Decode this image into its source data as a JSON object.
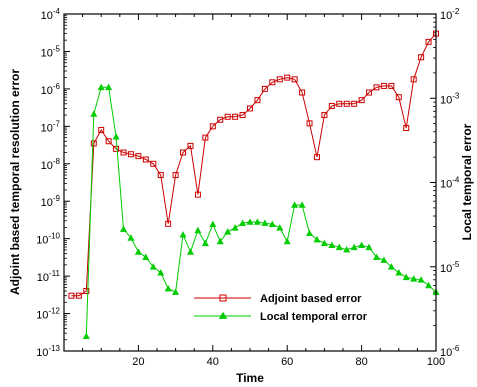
{
  "chart_data": {
    "type": "line",
    "title": "",
    "xlabel": "Time",
    "ylabel_left": "Adjoint based temporal resolution error",
    "ylabel_right": "Local temporal error",
    "xlim": [
      0,
      100
    ],
    "ylim_left": [
      1e-13,
      0.0001
    ],
    "ylim_right": [
      1e-06,
      0.01
    ],
    "yscale": "log",
    "grid": false,
    "legend_position": "bottom-center",
    "x_tick_labels": [
      "20",
      "40",
      "60",
      "80",
      "100"
    ],
    "y_left_tick_labels": [
      {
        "base": "10",
        "exp": "-4"
      },
      {
        "base": "10",
        "exp": "-5"
      },
      {
        "base": "10",
        "exp": "-6"
      },
      {
        "base": "10",
        "exp": "-7"
      },
      {
        "base": "10",
        "exp": "-8"
      },
      {
        "base": "10",
        "exp": "-9"
      },
      {
        "base": "10",
        "exp": "-10"
      },
      {
        "base": "10",
        "exp": "-11"
      },
      {
        "base": "10",
        "exp": "-12"
      },
      {
        "base": "10",
        "exp": "-13"
      }
    ],
    "y_right_tick_labels": [
      {
        "base": "10",
        "exp": "-2"
      },
      {
        "base": "10",
        "exp": "-3"
      },
      {
        "base": "10",
        "exp": "-4"
      },
      {
        "base": "10",
        "exp": "-5"
      },
      {
        "base": "10",
        "exp": "-6"
      }
    ],
    "series": [
      {
        "name": "Adjoint based error",
        "axis": "left",
        "color": "#cc0000",
        "marker": "square",
        "x": [
          2,
          4,
          6,
          8,
          10,
          12,
          14,
          16,
          18,
          20,
          22,
          24,
          26,
          28,
          30,
          32,
          34,
          36,
          38,
          40,
          42,
          44,
          46,
          48,
          50,
          52,
          54,
          56,
          58,
          60,
          62,
          64,
          66,
          68,
          70,
          72,
          74,
          76,
          78,
          80,
          82,
          84,
          86,
          88,
          90,
          92,
          94,
          96,
          98,
          100
        ],
        "y": [
          3e-12,
          3e-12,
          4e-12,
          3.5e-08,
          8e-08,
          4e-08,
          2.5e-08,
          2e-08,
          1.8e-08,
          1.6e-08,
          1.3e-08,
          1e-08,
          5e-09,
          2.5e-10,
          5e-09,
          2e-08,
          3e-08,
          1.5e-09,
          5e-08,
          1e-07,
          1.5e-07,
          1.8e-07,
          1.8e-07,
          2e-07,
          3e-07,
          5e-07,
          1e-06,
          1.5e-06,
          1.8e-06,
          2e-06,
          1.8e-06,
          8e-07,
          1.2e-07,
          1.5e-08,
          2e-07,
          3.5e-07,
          4e-07,
          4e-07,
          4e-07,
          5e-07,
          8e-07,
          1.1e-06,
          1.2e-06,
          1.2e-06,
          6e-07,
          9e-08,
          1.8e-06,
          7e-06,
          1.8e-05,
          3e-05
        ]
      },
      {
        "name": "Local temporal error",
        "axis": "right",
        "color": "#00cc00",
        "marker": "triangle",
        "x": [
          2,
          4,
          6,
          8,
          10,
          12,
          14,
          16,
          18,
          20,
          22,
          24,
          26,
          28,
          30,
          32,
          34,
          36,
          38,
          40,
          42,
          44,
          46,
          48,
          50,
          52,
          54,
          56,
          58,
          60,
          62,
          64,
          66,
          68,
          70,
          72,
          74,
          76,
          78,
          80,
          82,
          84,
          86,
          88,
          90,
          92,
          94,
          96,
          98,
          100
        ],
        "y": [
          null,
          null,
          1.5e-06,
          0.00065,
          0.00135,
          0.00135,
          0.00035,
          2.8e-05,
          2.2e-05,
          1.5e-05,
          1.3e-05,
          1e-05,
          8.5e-06,
          5.5e-06,
          5e-06,
          2.4e-05,
          1.5e-05,
          2.7e-05,
          1.9e-05,
          3.2e-05,
          2e-05,
          2.6e-05,
          2.9e-05,
          3.3e-05,
          3.4e-05,
          3.4e-05,
          3.3e-05,
          3.2e-05,
          2.9e-05,
          2e-05,
          5.4e-05,
          5.4e-05,
          2.5e-05,
          2.1e-05,
          1.9e-05,
          1.8e-05,
          1.7e-05,
          1.6e-05,
          1.7e-05,
          1.8e-05,
          1.7e-05,
          1.3e-05,
          1.2e-05,
          1e-05,
          8.5e-06,
          7.5e-06,
          7.2e-06,
          7e-06,
          6e-06,
          5e-06
        ]
      }
    ]
  }
}
